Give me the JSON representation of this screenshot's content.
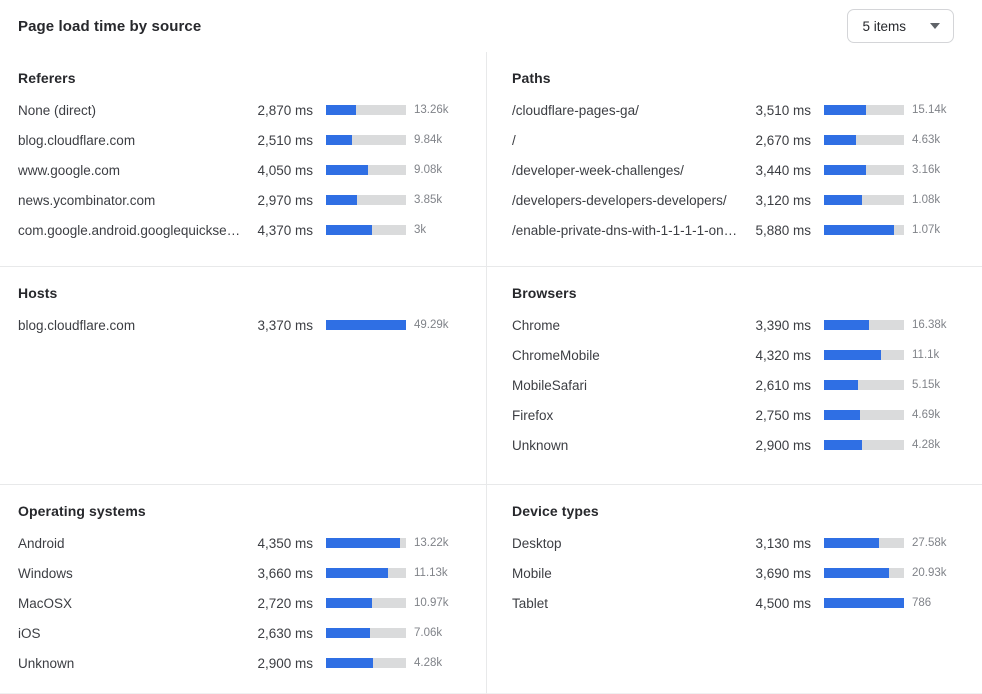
{
  "header": {
    "title": "Page load time by source",
    "items_selector_label": "5 items"
  },
  "colors": {
    "bar_fill": "#2f6fe4",
    "bar_track": "#dadbdc"
  },
  "panels": [
    {
      "title": "Referers",
      "rows": [
        {
          "label": "None (direct)",
          "ms": "2,870 ms",
          "count": "13.26k",
          "pct": 38
        },
        {
          "label": "blog.cloudflare.com",
          "ms": "2,510 ms",
          "count": "9.84k",
          "pct": 33
        },
        {
          "label": "www.google.com",
          "ms": "4,050 ms",
          "count": "9.08k",
          "pct": 53
        },
        {
          "label": "news.ycombinator.com",
          "ms": "2,970 ms",
          "count": "3.85k",
          "pct": 39
        },
        {
          "label": "com.google.android.googlequicksearc…",
          "ms": "4,370 ms",
          "count": "3k",
          "pct": 58
        }
      ]
    },
    {
      "title": "Paths",
      "rows": [
        {
          "label": "/cloudflare-pages-ga/",
          "ms": "3,510 ms",
          "count": "15.14k",
          "pct": 53
        },
        {
          "label": "/",
          "ms": "2,670 ms",
          "count": "4.63k",
          "pct": 40
        },
        {
          "label": "/developer-week-challenges/",
          "ms": "3,440 ms",
          "count": "3.16k",
          "pct": 52
        },
        {
          "label": "/developers-developers-developers/",
          "ms": "3,120 ms",
          "count": "1.08k",
          "pct": 47
        },
        {
          "label": "/enable-private-dns-with-1-1-1-1-on-…",
          "ms": "5,880 ms",
          "count": "1.07k",
          "pct": 88
        }
      ]
    },
    {
      "title": "Hosts",
      "rows": [
        {
          "label": "blog.cloudflare.com",
          "ms": "3,370 ms",
          "count": "49.29k",
          "pct": 100
        }
      ]
    },
    {
      "title": "Browsers",
      "rows": [
        {
          "label": "Chrome",
          "ms": "3,390 ms",
          "count": "16.38k",
          "pct": 56
        },
        {
          "label": "ChromeMobile",
          "ms": "4,320 ms",
          "count": "11.1k",
          "pct": 71
        },
        {
          "label": "MobileSafari",
          "ms": "2,610 ms",
          "count": "5.15k",
          "pct": 43
        },
        {
          "label": "Firefox",
          "ms": "2,750 ms",
          "count": "4.69k",
          "pct": 45
        },
        {
          "label": "Unknown",
          "ms": "2,900 ms",
          "count": "4.28k",
          "pct": 48
        }
      ]
    },
    {
      "title": "Operating systems",
      "rows": [
        {
          "label": "Android",
          "ms": "4,350 ms",
          "count": "13.22k",
          "pct": 92
        },
        {
          "label": "Windows",
          "ms": "3,660 ms",
          "count": "11.13k",
          "pct": 77
        },
        {
          "label": "MacOSX",
          "ms": "2,720 ms",
          "count": "10.97k",
          "pct": 58
        },
        {
          "label": "iOS",
          "ms": "2,630 ms",
          "count": "7.06k",
          "pct": 55
        },
        {
          "label": "Unknown",
          "ms": "2,900 ms",
          "count": "4.28k",
          "pct": 59
        }
      ]
    },
    {
      "title": "Device types",
      "rows": [
        {
          "label": "Desktop",
          "ms": "3,130 ms",
          "count": "27.58k",
          "pct": 69
        },
        {
          "label": "Mobile",
          "ms": "3,690 ms",
          "count": "20.93k",
          "pct": 81
        },
        {
          "label": "Tablet",
          "ms": "4,500 ms",
          "count": "786",
          "pct": 100
        }
      ]
    }
  ]
}
